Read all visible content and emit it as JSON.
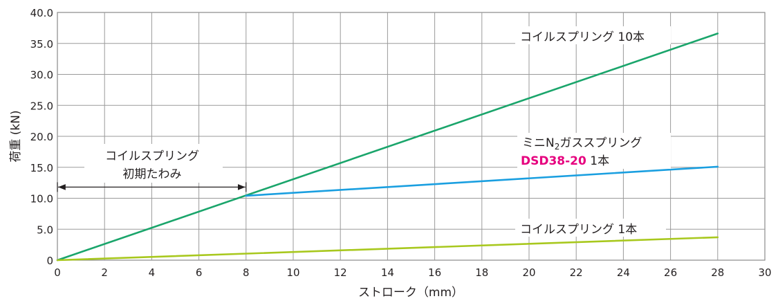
{
  "chart_data": {
    "type": "line",
    "xlabel": "ストローク（mm）",
    "ylabel": "荷重 (kN)",
    "xlim": [
      0,
      30
    ],
    "ylim": [
      0,
      40
    ],
    "x_ticks": [
      0,
      2,
      4,
      6,
      8,
      10,
      12,
      14,
      16,
      18,
      20,
      22,
      24,
      26,
      28,
      30
    ],
    "y_ticks": [
      "0",
      "5.0",
      "10.0",
      "15.0",
      "20.0",
      "25.0",
      "30.0",
      "35.0",
      "40.0"
    ],
    "grid": true,
    "series": [
      {
        "name": "コイルスプリング 10本",
        "color": "#1aa56b",
        "points": [
          [
            0,
            0
          ],
          [
            28,
            36.6
          ]
        ]
      },
      {
        "name": "ミニN2ガススプリング DSD38-20 1本",
        "color": "#1a9fe0",
        "points": [
          [
            8,
            10.4
          ],
          [
            28,
            15.1
          ]
        ]
      },
      {
        "name": "コイルスプリング 1本",
        "color": "#a8c81e",
        "points": [
          [
            0,
            0
          ],
          [
            28,
            3.7
          ]
        ]
      }
    ],
    "annotations": {
      "coil10": "コイルスプリング 10本",
      "gas_line1_prefix": "ミニN",
      "gas_line1_sub": "2",
      "gas_line1_suffix": "ガススプリング",
      "gas_line2_model": "DSD38-20",
      "gas_line2_rest": " 1本",
      "coil1": "コイルスプリング 1本",
      "initial_line1": "コイルスプリング",
      "initial_line2": "初期たわみ"
    },
    "initial_deflection_range": [
      0,
      8
    ]
  }
}
